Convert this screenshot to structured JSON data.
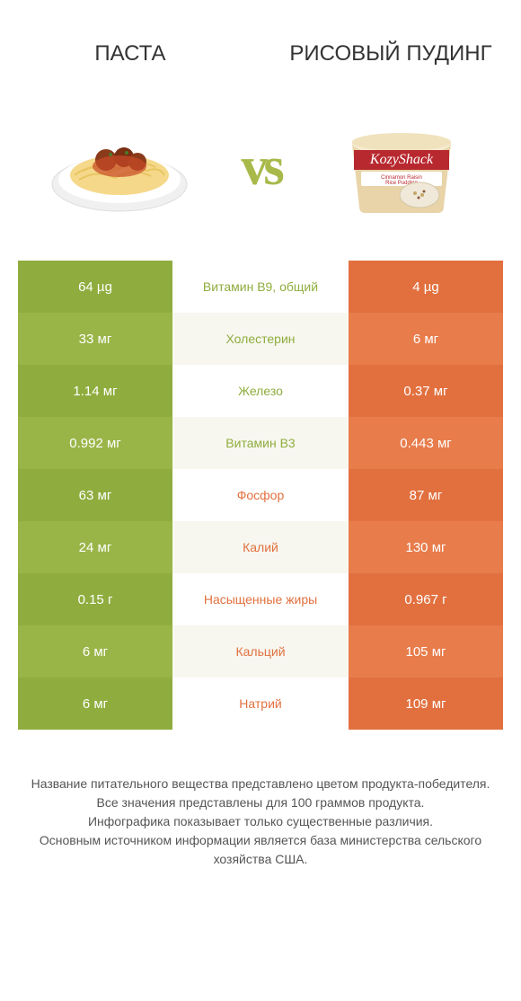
{
  "colors": {
    "green_primary": "#8fad3e",
    "green_alt1": "#99b548",
    "green_alt2": "#86a43a",
    "orange_primary": "#e2703f",
    "orange_alt1": "#e87c4b",
    "orange_alt2": "#dc6636",
    "mid_bg_even": "#ffffff",
    "mid_bg_odd": "#f7f7f0",
    "text_mid_green": "#8fad3e",
    "text_mid_orange": "#e2703f",
    "header_text": "#333333",
    "footer_text": "#555555"
  },
  "header": {
    "left_title": "ПАСТА",
    "right_title": "РИСОВЫЙ ПУДИНГ",
    "vs": "vs"
  },
  "rows": [
    {
      "left": "64 µg",
      "label": "Витамин B9, общий",
      "right": "4 µg",
      "winner": "left"
    },
    {
      "left": "33 мг",
      "label": "Холестерин",
      "right": "6 мг",
      "winner": "left"
    },
    {
      "left": "1.14 мг",
      "label": "Железо",
      "right": "0.37 мг",
      "winner": "left"
    },
    {
      "left": "0.992 мг",
      "label": "Витамин B3",
      "right": "0.443 мг",
      "winner": "left"
    },
    {
      "left": "63 мг",
      "label": "Фосфор",
      "right": "87 мг",
      "winner": "right"
    },
    {
      "left": "24 мг",
      "label": "Калий",
      "right": "130 мг",
      "winner": "right"
    },
    {
      "left": "0.15 г",
      "label": "Насыщенные жиры",
      "right": "0.967 г",
      "winner": "right"
    },
    {
      "left": "6 мг",
      "label": "Кальций",
      "right": "105 мг",
      "winner": "right"
    },
    {
      "left": "6 мг",
      "label": "Натрий",
      "right": "109 мг",
      "winner": "right"
    }
  ],
  "footer": {
    "line1": "Название питательного вещества представлено цветом продукта-победителя.",
    "line2": "Все значения представлены для 100 граммов продукта.",
    "line3": "Инфографика показывает только существенные различия.",
    "line4": "Основным источником информации является база министерства сельского хозяйства США."
  }
}
